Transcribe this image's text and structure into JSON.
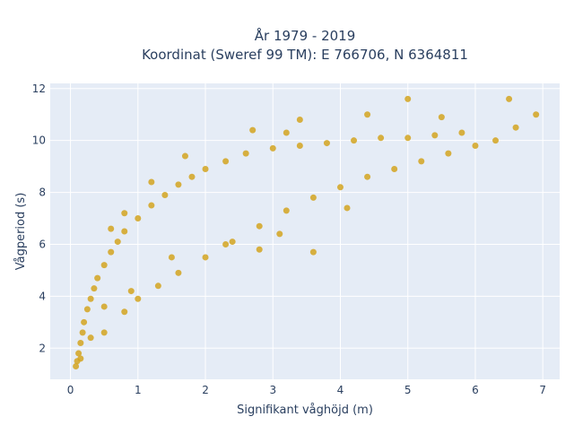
{
  "chart_data": {
    "type": "scatter",
    "title": "År 1979 - 2019",
    "subtitle": "Koordinat (Sweref 99 TM): E 766706, N 6364811",
    "xlabel": "Signifikant våghöjd (m)",
    "ylabel": "Vågperiod (s)",
    "xlim": [
      -0.3,
      7.25
    ],
    "ylim": [
      0.8,
      12.2
    ],
    "xticks": [
      0,
      1,
      2,
      3,
      4,
      5,
      6,
      7
    ],
    "yticks": [
      2,
      4,
      6,
      8,
      10,
      12
    ],
    "grid": true,
    "legend": "none",
    "marker_color": "#d4a520",
    "background_color": "#e5ecf6",
    "grid_color": "#ffffff",
    "series": [
      {
        "points": [
          [
            0.08,
            1.3
          ],
          [
            0.1,
            1.5
          ],
          [
            0.12,
            1.8
          ],
          [
            0.15,
            2.2
          ],
          [
            0.18,
            2.6
          ],
          [
            0.2,
            3.0
          ],
          [
            0.25,
            3.5
          ],
          [
            0.3,
            3.9
          ],
          [
            0.35,
            4.3
          ],
          [
            0.4,
            4.7
          ],
          [
            0.5,
            5.2
          ],
          [
            0.6,
            5.7
          ],
          [
            0.7,
            6.1
          ],
          [
            0.8,
            6.5
          ],
          [
            1.0,
            7.0
          ],
          [
            1.2,
            7.5
          ],
          [
            1.4,
            7.9
          ],
          [
            1.6,
            8.3
          ],
          [
            1.8,
            8.6
          ],
          [
            2.0,
            8.9
          ],
          [
            2.3,
            9.2
          ],
          [
            2.6,
            9.5
          ],
          [
            3.0,
            9.7
          ],
          [
            3.4,
            9.8
          ],
          [
            3.8,
            9.9
          ],
          [
            4.2,
            10.0
          ],
          [
            4.6,
            10.1
          ],
          [
            5.0,
            10.1
          ],
          [
            5.4,
            10.2
          ],
          [
            5.8,
            10.3
          ],
          [
            0.5,
            2.6
          ],
          [
            0.8,
            3.4
          ],
          [
            1.0,
            3.9
          ],
          [
            1.3,
            4.4
          ],
          [
            1.6,
            4.9
          ],
          [
            2.0,
            5.5
          ],
          [
            2.4,
            6.1
          ],
          [
            2.8,
            6.7
          ],
          [
            3.2,
            7.3
          ],
          [
            3.6,
            7.8
          ],
          [
            4.0,
            8.2
          ],
          [
            4.4,
            8.6
          ],
          [
            4.8,
            8.9
          ],
          [
            5.2,
            9.2
          ],
          [
            5.6,
            9.5
          ],
          [
            6.0,
            9.8
          ],
          [
            6.3,
            10.0
          ],
          [
            6.6,
            10.5
          ],
          [
            6.9,
            11.0
          ],
          [
            5.0,
            11.6
          ],
          [
            6.5,
            11.6
          ],
          [
            4.4,
            11.0
          ],
          [
            5.5,
            10.9
          ],
          [
            3.4,
            10.8
          ],
          [
            3.2,
            10.3
          ],
          [
            2.7,
            10.4
          ],
          [
            1.7,
            9.4
          ],
          [
            1.2,
            8.4
          ],
          [
            0.8,
            7.2
          ],
          [
            0.6,
            6.6
          ],
          [
            3.6,
            5.7
          ],
          [
            2.8,
            5.8
          ],
          [
            4.1,
            7.4
          ],
          [
            3.1,
            6.4
          ],
          [
            2.3,
            6.0
          ],
          [
            1.5,
            5.5
          ],
          [
            0.9,
            4.2
          ],
          [
            0.5,
            3.6
          ],
          [
            0.3,
            2.4
          ],
          [
            0.15,
            1.6
          ]
        ]
      }
    ]
  }
}
